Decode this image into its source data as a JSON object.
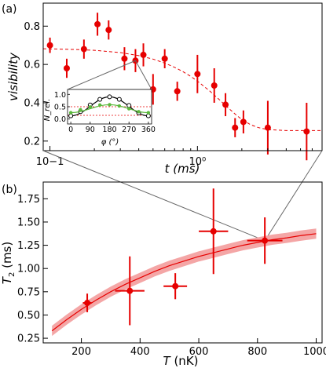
{
  "colors": {
    "data_red": "#e60000",
    "band_fill": "#f4a6a6",
    "inset_black": "#000000",
    "inset_green": "#5cb83c",
    "inset_ref_red": "#e60000",
    "connector": "#666666"
  },
  "chart_data": [
    {
      "id": "panel-a",
      "type": "scatter",
      "panel_label": "(a)",
      "title": "",
      "xlabel": "t (ms)",
      "ylabel": "visibility",
      "xscale": "log",
      "xlim": [
        0.09,
        7
      ],
      "ylim": [
        0.15,
        0.92
      ],
      "xticks": [
        0.1,
        1
      ],
      "xticklabels": [
        "10−1",
        "10⁰"
      ],
      "yticks": [
        0.2,
        0.4,
        0.6,
        0.8
      ],
      "yticklabels": [
        "0.2",
        "0.4",
        "0.6",
        "0.8"
      ],
      "grid": false,
      "series": [
        {
          "style": "points-with-errorbars",
          "points": [
            {
              "x": 0.1,
              "y": 0.7,
              "yerr": 0.04
            },
            {
              "x": 0.13,
              "y": 0.58,
              "yerr": 0.05
            },
            {
              "x": 0.17,
              "y": 0.68,
              "yerr": 0.05
            },
            {
              "x": 0.21,
              "y": 0.81,
              "yerr": 0.06
            },
            {
              "x": 0.25,
              "y": 0.78,
              "yerr": 0.05
            },
            {
              "x": 0.32,
              "y": 0.63,
              "yerr": 0.06
            },
            {
              "x": 0.38,
              "y": 0.62,
              "yerr": 0.06
            },
            {
              "x": 0.43,
              "y": 0.65,
              "yerr": 0.06
            },
            {
              "x": 0.5,
              "y": 0.47,
              "yerr": 0.08
            },
            {
              "x": 0.6,
              "y": 0.63,
              "yerr": 0.05
            },
            {
              "x": 0.73,
              "y": 0.46,
              "yerr": 0.05
            },
            {
              "x": 1.0,
              "y": 0.55,
              "yerr": 0.1
            },
            {
              "x": 1.3,
              "y": 0.49,
              "yerr": 0.09
            },
            {
              "x": 1.55,
              "y": 0.39,
              "yerr": 0.06
            },
            {
              "x": 1.8,
              "y": 0.27,
              "yerr": 0.05
            },
            {
              "x": 2.05,
              "y": 0.3,
              "yerr": 0.06
            },
            {
              "x": 3.0,
              "y": 0.27,
              "yerr": 0.14
            },
            {
              "x": 5.5,
              "y": 0.25,
              "yerr": 0.15
            }
          ]
        },
        {
          "style": "dashed-fit",
          "curve": [
            [
              0.09,
              0.682
            ],
            [
              0.15,
              0.678
            ],
            [
              0.2,
              0.674
            ],
            [
              0.3,
              0.662
            ],
            [
              0.4,
              0.646
            ],
            [
              0.5,
              0.628
            ],
            [
              0.6,
              0.607
            ],
            [
              0.7,
              0.585
            ],
            [
              0.8,
              0.562
            ],
            [
              0.9,
              0.538
            ],
            [
              1.0,
              0.513
            ],
            [
              1.2,
              0.464
            ],
            [
              1.4,
              0.418
            ],
            [
              1.6,
              0.376
            ],
            [
              1.8,
              0.341
            ],
            [
              2.0,
              0.312
            ],
            [
              2.3,
              0.285
            ],
            [
              2.6,
              0.27
            ],
            [
              3.0,
              0.26
            ],
            [
              4.0,
              0.255
            ],
            [
              7.0,
              0.255
            ]
          ]
        }
      ]
    },
    {
      "id": "panel-a-inset",
      "type": "scatter",
      "title": "",
      "xlabel": "φ (°)",
      "ylabel": "N_rel.",
      "xlim": [
        -15,
        375
      ],
      "ylim": [
        -0.2,
        1.2
      ],
      "xticks": [
        0,
        90,
        180,
        270,
        360
      ],
      "xticklabels": [
        "0",
        "90",
        "180",
        "270",
        "360"
      ],
      "yticks": [
        0.0,
        0.5,
        1.0
      ],
      "yticklabels": [
        "0.0",
        "0.5",
        "1.0"
      ],
      "grid": false,
      "reference_lines_y": [
        0.15,
        0.5
      ],
      "series": [
        {
          "marker": "open-circle",
          "color": "black",
          "points": [
            [
              0,
              0.13
            ],
            [
              45,
              0.3
            ],
            [
              90,
              0.57
            ],
            [
              135,
              0.8
            ],
            [
              180,
              0.9
            ],
            [
              225,
              0.8
            ],
            [
              270,
              0.55
            ],
            [
              315,
              0.25
            ],
            [
              360,
              0.13
            ]
          ],
          "fit": "cosine"
        },
        {
          "marker": "filled-circle",
          "color": "green",
          "points": [
            [
              0,
              0.26
            ],
            [
              45,
              0.38
            ],
            [
              90,
              0.49
            ],
            [
              135,
              0.57
            ],
            [
              180,
              0.58
            ],
            [
              225,
              0.53
            ],
            [
              270,
              0.42
            ],
            [
              315,
              0.3
            ],
            [
              360,
              0.26
            ]
          ],
          "fit": "cosine"
        }
      ]
    },
    {
      "id": "panel-b",
      "type": "scatter",
      "panel_label": "(b)",
      "title": "",
      "xlabel": "T (nK)",
      "ylabel": "T2 (ms)",
      "xlim": [
        70,
        1020
      ],
      "ylim": [
        0.2,
        1.93
      ],
      "xticks": [
        200,
        400,
        600,
        800,
        1000
      ],
      "xticklabels": [
        "200",
        "400",
        "600",
        "800",
        "1000"
      ],
      "yticks": [
        0.25,
        0.5,
        0.75,
        1.0,
        1.25,
        1.5,
        1.75
      ],
      "yticklabels": [
        "0.25",
        "0.50",
        "0.75",
        "1.00",
        "1.25",
        "1.50",
        "1.75"
      ],
      "grid": false,
      "series": [
        {
          "style": "points-with-xy-errorbars",
          "points": [
            {
              "x": 220,
              "y": 0.63,
              "xerr": 15,
              "yerr": 0.1
            },
            {
              "x": 365,
              "y": 0.76,
              "xerr": 50,
              "yerr": 0.37
            },
            {
              "x": 520,
              "y": 0.81,
              "xerr": 40,
              "yerr": 0.14
            },
            {
              "x": 650,
              "y": 1.4,
              "xerr": 50,
              "yerr": 0.46
            },
            {
              "x": 825,
              "y": 1.3,
              "xerr": 60,
              "yerr": 0.25
            }
          ]
        },
        {
          "style": "fit-with-band",
          "curve": [
            [
              100,
              0.33
            ],
            [
              150,
              0.45
            ],
            [
              200,
              0.56
            ],
            [
              250,
              0.66
            ],
            [
              300,
              0.75
            ],
            [
              350,
              0.83
            ],
            [
              400,
              0.9
            ],
            [
              450,
              0.97
            ],
            [
              500,
              1.03
            ],
            [
              550,
              1.08
            ],
            [
              600,
              1.13
            ],
            [
              650,
              1.17
            ],
            [
              700,
              1.21
            ],
            [
              750,
              1.25
            ],
            [
              800,
              1.28
            ],
            [
              850,
              1.31
            ],
            [
              900,
              1.33
            ],
            [
              950,
              1.355
            ],
            [
              1000,
              1.375
            ]
          ],
          "band_halfwidth": 0.055
        }
      ]
    }
  ]
}
